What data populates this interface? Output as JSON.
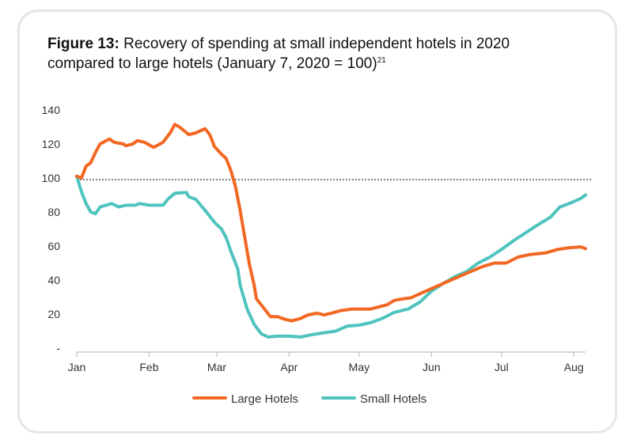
{
  "title": {
    "figure": "Figure 13:",
    "text": "Recovery of spending at small independent hotels in 2020",
    "line2": "compared to large hotels (January 7, 2020 = 100)",
    "footnote": "21"
  },
  "colors": {
    "large": "#f26722",
    "small": "#4fc3bd",
    "axis": "#cccccc",
    "reference": "#333333"
  },
  "chart_data": {
    "type": "line",
    "title": "Recovery of spending at small independent hotels in 2020 compared to large hotels (January 7, 2020 = 100)",
    "xlabel": "",
    "ylabel": "",
    "x_unit": "days since Jan 1, 2020",
    "xlim": [
      0,
      218
    ],
    "ylim": [
      0,
      140
    ],
    "y_ticks": [
      0,
      20,
      40,
      60,
      80,
      100,
      120,
      140
    ],
    "y_tick_labels": [
      "-",
      "20",
      "40",
      "60",
      "80",
      "100",
      "120",
      "140"
    ],
    "x_ticks": [
      0,
      31,
      60,
      91,
      121,
      152,
      182,
      213
    ],
    "x_tick_labels": [
      "Jan",
      "Feb",
      "Mar",
      "Apr",
      "May",
      "Jun",
      "Jul",
      "Aug"
    ],
    "reference_line": 100,
    "grid": false,
    "legend_position": "bottom",
    "series": [
      {
        "name": "Large Hotels",
        "x": [
          0,
          2,
          4,
          6,
          8,
          10,
          14,
          16,
          20,
          21,
          24,
          26,
          29,
          31,
          33,
          37,
          40,
          42,
          44,
          48,
          51,
          55,
          57,
          59,
          62,
          64,
          66,
          68,
          70,
          72,
          74,
          76,
          77,
          81,
          83,
          86,
          89,
          92,
          96,
          99,
          103,
          106,
          109,
          113,
          118,
          126,
          133,
          136,
          140,
          143,
          148,
          152,
          157,
          162,
          167,
          174,
          179,
          184,
          189,
          194,
          201,
          206,
          211,
          216,
          218
        ],
        "y": [
          101,
          100,
          107,
          109,
          115,
          120,
          123,
          121,
          120,
          119,
          120,
          122,
          121,
          119.5,
          118,
          121,
          126.5,
          131.5,
          130,
          125.5,
          126.5,
          129,
          125.5,
          118.5,
          114,
          111.5,
          104.5,
          95,
          81,
          65,
          49,
          37,
          29,
          22,
          18.5,
          18.5,
          17,
          16,
          17.5,
          19.5,
          20.5,
          19.5,
          20.5,
          22,
          23,
          23,
          25.5,
          28,
          29,
          29.5,
          32.5,
          35,
          38,
          41,
          44,
          48,
          50,
          50,
          53.5,
          55,
          56,
          58,
          59,
          59.5,
          58.5
        ]
      },
      {
        "name": "Small Hotels",
        "x": [
          0,
          2,
          4,
          6,
          8,
          10,
          15,
          18,
          21,
          25,
          27,
          31,
          37,
          39,
          42,
          47,
          48,
          51,
          55,
          59,
          62,
          64,
          66,
          69,
          70,
          73,
          76,
          79,
          82,
          86,
          91,
          96,
          101,
          106,
          111,
          116,
          121,
          126,
          131,
          136,
          142,
          147,
          152,
          157,
          162,
          167,
          172,
          177,
          182,
          187,
          192,
          197,
          203,
          207,
          211,
          216,
          218
        ],
        "y": [
          101,
          92,
          85,
          80,
          79,
          83,
          85,
          83,
          84,
          84,
          85,
          84,
          84,
          87.5,
          91,
          91.5,
          89,
          87.5,
          81,
          74,
          70,
          65,
          57,
          46.5,
          37,
          23,
          14,
          8.5,
          6.5,
          7,
          7,
          6.5,
          8,
          9,
          10,
          13,
          13.5,
          15,
          17.5,
          21,
          23,
          27,
          33.5,
          38,
          42,
          45,
          50,
          53.5,
          58,
          63,
          67.5,
          72,
          77,
          83,
          85,
          88,
          90
        ]
      }
    ]
  }
}
